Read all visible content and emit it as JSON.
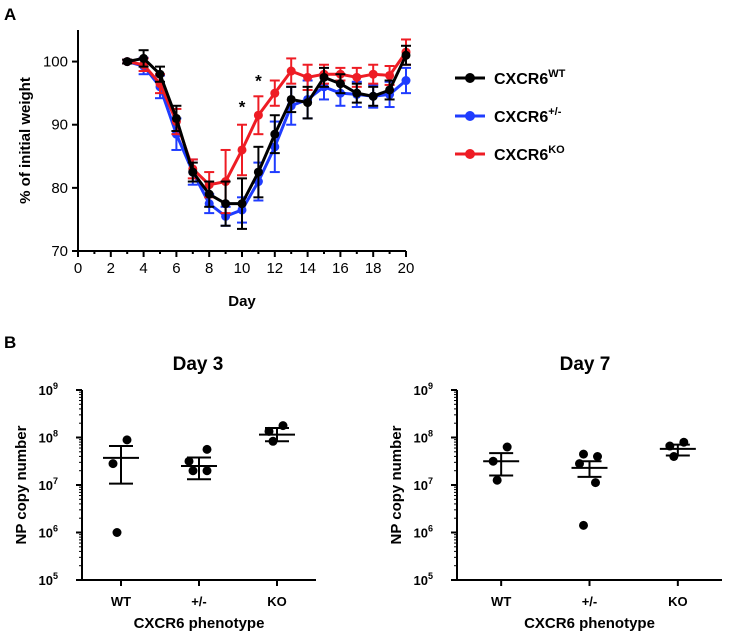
{
  "figure": {
    "panel_a_label": "A",
    "panel_b_label": "B"
  },
  "chart_data": [
    {
      "type": "line",
      "panel": "A",
      "title": "",
      "xlabel": "Day",
      "ylabel": "% of initial weight",
      "xlim": [
        0,
        20
      ],
      "ylim": [
        70,
        105
      ],
      "xticks": [
        0,
        2,
        4,
        6,
        8,
        10,
        12,
        14,
        16,
        18,
        20
      ],
      "yticks": [
        70,
        80,
        90,
        100
      ],
      "x": [
        3,
        4,
        5,
        6,
        7,
        8,
        9,
        10,
        11,
        12,
        13,
        14,
        15,
        16,
        17,
        18,
        19,
        20
      ],
      "series": [
        {
          "name": "CXCR6",
          "superscript": "WT",
          "color": "#000000",
          "values": [
            100,
            100.5,
            98,
            91,
            82.5,
            79,
            77.5,
            77.5,
            82.5,
            88.5,
            94,
            93.5,
            97.5,
            96.5,
            95,
            94.5,
            95.5,
            101
          ],
          "errors": [
            0.3,
            1.3,
            1.2,
            2,
            1.5,
            2,
            3.5,
            4,
            4,
            3,
            2,
            2.5,
            1.5,
            1.5,
            1.5,
            1.5,
            1.5,
            1.5
          ]
        },
        {
          "name": "CXCR6",
          "superscript": "+/-",
          "color": "#1f3cff",
          "values": [
            100,
            99.3,
            96,
            88.5,
            82.5,
            77.5,
            75.5,
            76.5,
            81,
            86.5,
            93,
            94,
            96,
            95,
            94.8,
            94.5,
            94.8,
            97
          ],
          "errors": [
            0.3,
            1.3,
            1.8,
            2.5,
            2,
            1.5,
            1.5,
            2,
            3,
            4,
            3,
            3,
            2,
            2,
            2,
            1.8,
            2,
            2
          ]
        },
        {
          "name": "CXCR6",
          "superscript": "KO",
          "color": "#ee1c24",
          "values": [
            100,
            99.5,
            96.5,
            90.5,
            83,
            80.5,
            81,
            86,
            91.5,
            95,
            98.5,
            97.5,
            98,
            98,
            97.5,
            98,
            97.8,
            101.5
          ],
          "errors": [
            0.3,
            1,
            1.5,
            2,
            1.5,
            2,
            5,
            4,
            3,
            2,
            2,
            2,
            1.5,
            1,
            1.5,
            1.5,
            1.5,
            2
          ]
        }
      ],
      "annotations": [
        {
          "text": "*",
          "x": 10,
          "y": 93.2
        },
        {
          "text": "*",
          "x": 11,
          "y": 97.3
        }
      ],
      "legend_position": "right"
    },
    {
      "type": "scatter",
      "panel": "B-left",
      "title": "Day 3",
      "xlabel": "CXCR6 phenotype",
      "ylabel": "NP copy number",
      "yscale": "log",
      "ylim_exp": [
        5,
        9
      ],
      "ytick_base": "10",
      "ytick_exponents": [
        "5",
        "6",
        "7",
        "8",
        "9"
      ],
      "categories": [
        "WT",
        "+/-",
        "KO"
      ],
      "groups": [
        {
          "category": "WT",
          "points_log10": [
            7.95,
            7.45,
            6.0
          ],
          "mean_log10": 7.57,
          "sem_upper_log10": 7.82,
          "sem_lower_log10": 7.03
        },
        {
          "category": "+/-",
          "points_log10": [
            7.75,
            7.5,
            7.3,
            7.3
          ],
          "mean_log10": 7.4,
          "sem_upper_log10": 7.58,
          "sem_lower_log10": 7.12
        },
        {
          "category": "KO",
          "points_log10": [
            8.25,
            8.13,
            7.92
          ],
          "mean_log10": 8.06,
          "sem_upper_log10": 8.2,
          "sem_lower_log10": 7.92
        }
      ]
    },
    {
      "type": "scatter",
      "panel": "B-right",
      "title": "Day 7",
      "xlabel": "CXCR6 phenotype",
      "ylabel": "NP copy number",
      "yscale": "log",
      "ylim_exp": [
        5,
        9
      ],
      "ytick_base": "10",
      "ytick_exponents": [
        "5",
        "6",
        "7",
        "8",
        "9"
      ],
      "categories": [
        "WT",
        "+/-",
        "KO"
      ],
      "groups": [
        {
          "category": "WT",
          "points_log10": [
            7.8,
            7.5,
            7.1
          ],
          "mean_log10": 7.5,
          "sem_upper_log10": 7.67,
          "sem_lower_log10": 7.2
        },
        {
          "category": "+/-",
          "points_log10": [
            7.65,
            7.6,
            7.45,
            7.05,
            6.15
          ],
          "mean_log10": 7.36,
          "sem_upper_log10": 7.5,
          "sem_lower_log10": 7.17
        },
        {
          "category": "KO",
          "points_log10": [
            7.9,
            7.82,
            7.6
          ],
          "mean_log10": 7.76,
          "sem_upper_log10": 7.85,
          "sem_lower_log10": 7.62
        }
      ]
    }
  ]
}
